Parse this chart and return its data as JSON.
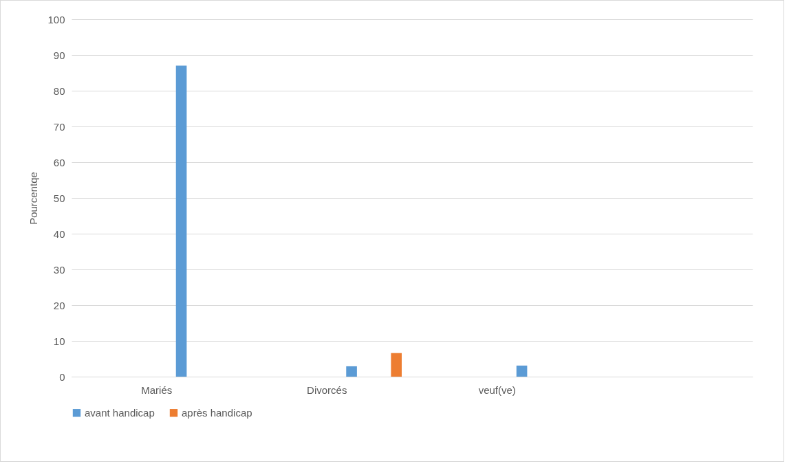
{
  "chart_data": {
    "type": "bar",
    "ylabel": "Pourcentqe",
    "categories": [
      "Mariés",
      "Divorcés",
      "veuf(ve)",
      null
    ],
    "series": [
      {
        "name": "avant handicap",
        "color": "#5b9bd5",
        "values": [
          87,
          2.9,
          3.1,
          null
        ]
      },
      {
        "name": "après handicap",
        "color": "#ed7d31",
        "values": [
          0,
          6.6,
          0,
          null
        ]
      }
    ],
    "ylim": [
      0,
      100
    ],
    "yticks": [
      0,
      10,
      20,
      30,
      40,
      50,
      60,
      70,
      80,
      90,
      100
    ],
    "grid": "y",
    "legend": "bottom"
  }
}
